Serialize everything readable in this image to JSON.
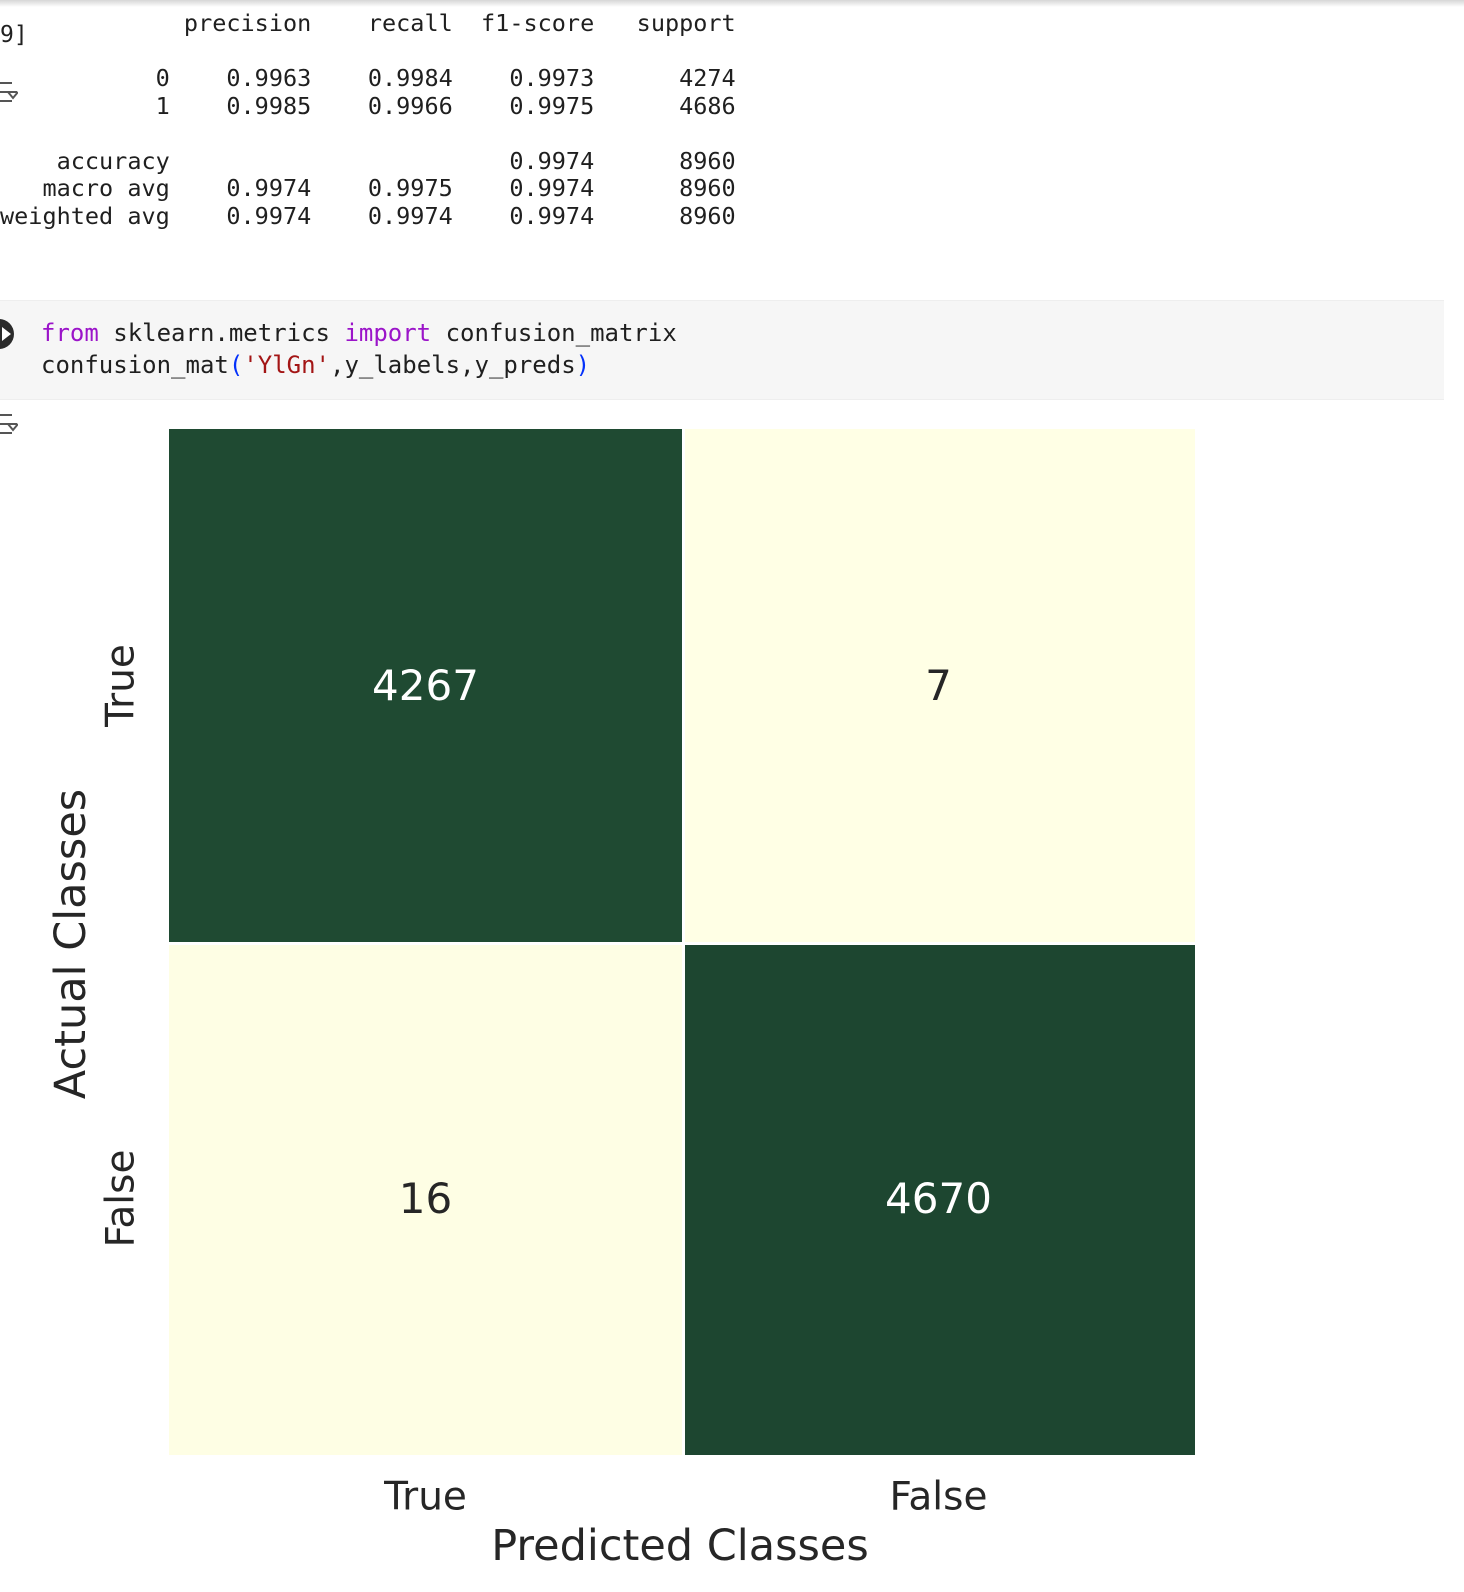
{
  "output_1": {
    "exec_count": "9]",
    "report": {
      "header": [
        "precision",
        "recall",
        "f1-score",
        "support"
      ],
      "rows": [
        {
          "label": "0",
          "precision": "0.9963",
          "recall": "0.9984",
          "f1": "0.9973",
          "support": "4274"
        },
        {
          "label": "1",
          "precision": "0.9985",
          "recall": "0.9966",
          "f1": "0.9975",
          "support": "4686"
        },
        {
          "label": "accuracy",
          "precision": "",
          "recall": "",
          "f1": "0.9974",
          "support": "8960"
        },
        {
          "label": "macro avg",
          "precision": "0.9974",
          "recall": "0.9975",
          "f1": "0.9974",
          "support": "8960"
        },
        {
          "label": "weighted avg",
          "precision": "0.9974",
          "recall": "0.9974",
          "f1": "0.9974",
          "support": "8960"
        }
      ]
    }
  },
  "code_cell": {
    "line1": {
      "kw_from": "from",
      "module": " sklearn.metrics ",
      "kw_import": "import",
      "name": " confusion_matrix"
    },
    "line2": {
      "call": "confusion_mat",
      "open": "(",
      "arg_str": "'YlGn'",
      "args": ",y_labels,y_preds",
      "close": ")"
    }
  },
  "icons": {
    "output_toggle": "output-toggle-icon",
    "run": "run-cell-icon"
  },
  "colors": {
    "dark_1": "#275e3b",
    "dark_2": "#1d4630",
    "light": "#ffffe5",
    "keyword": "#9b14c9",
    "string": "#a31515"
  },
  "chart_data": {
    "type": "heatmap",
    "title": "",
    "xlabel": "Predicted Classes",
    "ylabel": "Actual Classes",
    "x_categories": [
      "True",
      "False"
    ],
    "y_categories": [
      "True",
      "False"
    ],
    "values": [
      [
        4267,
        7
      ],
      [
        16,
        4670
      ]
    ],
    "colormap": "YlGn",
    "colorbar": false
  }
}
